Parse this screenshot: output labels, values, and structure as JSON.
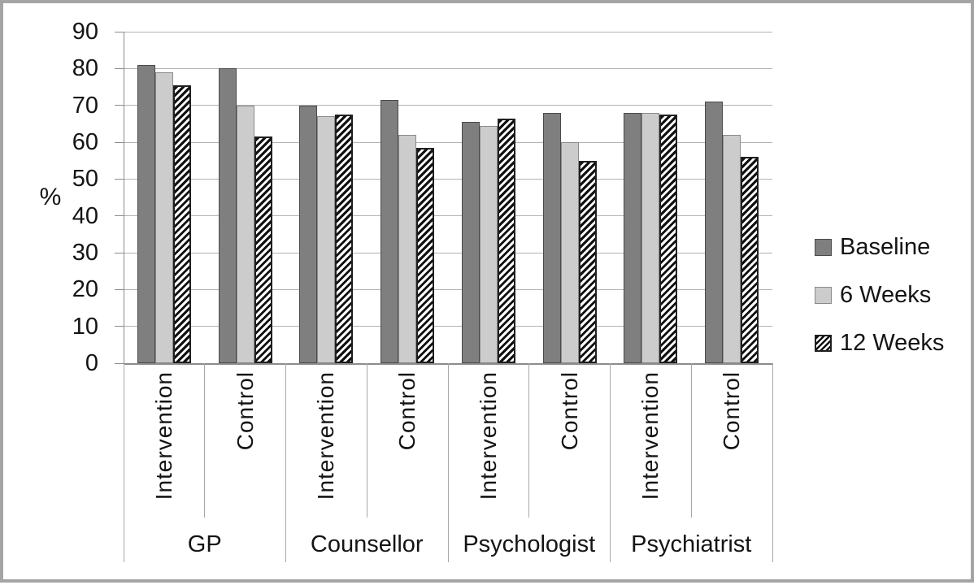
{
  "figure": {
    "background": "#ffffff",
    "frame_color": "#a4a4a4"
  },
  "chart_data": {
    "type": "bar",
    "title": "",
    "ylabel": "%",
    "xlabel": "",
    "ylim": [
      0,
      90
    ],
    "yticks": [
      0,
      10,
      20,
      30,
      40,
      50,
      60,
      70,
      80,
      90
    ],
    "grid": true,
    "legend_position": "right",
    "group_labels": [
      "GP",
      "Counsellor",
      "Psychologist",
      "Psychiatrist"
    ],
    "subgroup_labels": [
      "Intervention",
      "Control"
    ],
    "categories": [
      "GP Intervention",
      "GP Control",
      "Counsellor Intervention",
      "Counsellor Control",
      "Psychologist Intervention",
      "Psychologist Control",
      "Psychiatrist Intervention",
      "Psychiatrist Control"
    ],
    "series": [
      {
        "name": "Baseline",
        "pattern": "solid",
        "fill": "#7f7f7f",
        "border": "#4a4a4a",
        "values": [
          81,
          80,
          70,
          71.5,
          65.5,
          68,
          68,
          71
        ]
      },
      {
        "name": "6 Weeks",
        "pattern": "solid",
        "fill": "#cccccc",
        "border": "#8a8a8a",
        "values": [
          79,
          70,
          67,
          62,
          64.5,
          60,
          68,
          62
        ]
      },
      {
        "name": "12 Weeks",
        "pattern": "diagonal-hatch",
        "fill": "#ffffff",
        "hatch_color": "#101010",
        "border": "#1f1f1f",
        "values": [
          75.5,
          61.5,
          67.5,
          58.5,
          66.5,
          55,
          67.5,
          56
        ]
      }
    ],
    "colors": {
      "gridline": "#b3b3b3",
      "axis": "#8c8c8c",
      "category_line": "#a8a8a8",
      "text": "#141414"
    }
  }
}
